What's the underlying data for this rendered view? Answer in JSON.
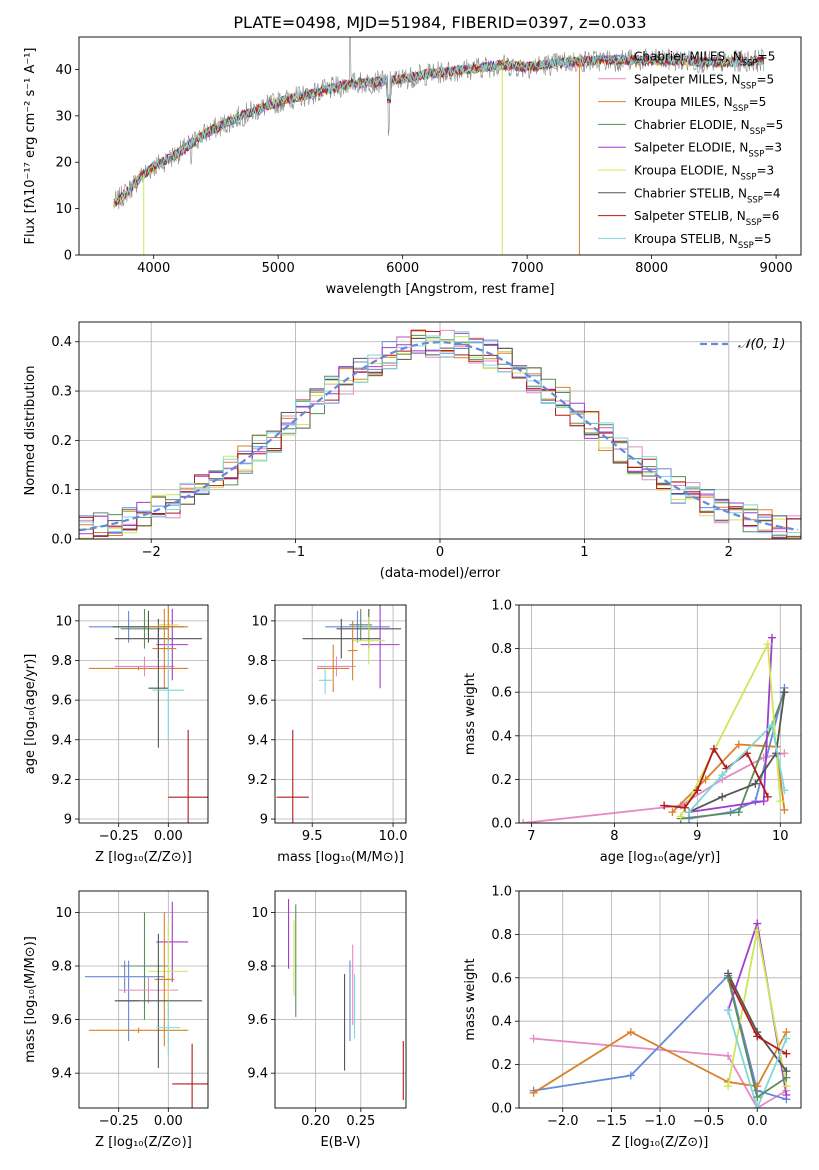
{
  "figure_title": "PLATE=0498, MJD=51984, FIBERID=0397, z=0.033",
  "chart_data": [
    {
      "id": "spectrum",
      "type": "line",
      "title": "PLATE=0498, MJD=51984, FIBERID=0397, z=0.033",
      "xlabel": "wavelength [Angstrom, rest frame]",
      "ylabel": "Flux [fλ10⁻¹⁷ erg cm⁻² s⁻¹ A⁻¹]",
      "xlim": [
        3400,
        9200
      ],
      "ylim": [
        0,
        47
      ],
      "xticks": [
        4000,
        5000,
        6000,
        7000,
        8000,
        9000
      ],
      "yticks": [
        0,
        10,
        20,
        30,
        40
      ],
      "grid": false,
      "legend_position": "upper-right",
      "legend": [
        {
          "label": "Chabrier MILES, N",
          "sub": "SSP",
          "tail": "=5",
          "color": "#6688dd"
        },
        {
          "label": "Salpeter MILES, N",
          "sub": "SSP",
          "tail": "=5",
          "color": "#e68ac2"
        },
        {
          "label": "Kroupa MILES, N",
          "sub": "SSP",
          "tail": "=5",
          "color": "#d9822b"
        },
        {
          "label": "Chabrier ELODIE, N",
          "sub": "SSP",
          "tail": "=5",
          "color": "#5c8c5c"
        },
        {
          "label": "Salpeter ELODIE, N",
          "sub": "SSP",
          "tail": "=3",
          "color": "#a23bd0"
        },
        {
          "label": "Kroupa ELODIE, N",
          "sub": "SSP",
          "tail": "=3",
          "color": "#cfe65a"
        },
        {
          "label": "Chabrier STELIB, N",
          "sub": "SSP",
          "tail": "=4",
          "color": "#555555"
        },
        {
          "label": "Salpeter STELIB, N",
          "sub": "SSP",
          "tail": "=6",
          "color": "#b31b1b"
        },
        {
          "label": "Kroupa STELIB, N",
          "sub": "SSP",
          "tail": "=5",
          "color": "#7fd6dc"
        }
      ],
      "data_spectrum_anchors": [
        [
          3680,
          11
        ],
        [
          3800,
          14
        ],
        [
          3900,
          17
        ],
        [
          4000,
          19
        ],
        [
          4200,
          22
        ],
        [
          4400,
          26
        ],
        [
          4700,
          30
        ],
        [
          5000,
          33
        ],
        [
          5300,
          35
        ],
        [
          5600,
          37
        ],
        [
          5900,
          37.5
        ],
        [
          6200,
          39
        ],
        [
          6500,
          40
        ],
        [
          6800,
          41
        ],
        [
          7000,
          40.5
        ],
        [
          7300,
          41.5
        ],
        [
          7600,
          42
        ],
        [
          7900,
          42
        ],
        [
          8200,
          42
        ],
        [
          8500,
          41.5
        ],
        [
          8900,
          42
        ]
      ],
      "features": [
        {
          "x": 5890,
          "depth": 10,
          "note": "dip"
        },
        {
          "x": 6800,
          "drop_to": 0,
          "color": "#cfe65a"
        },
        {
          "x": 7420,
          "drop_to": 0,
          "color": "#d9822b"
        },
        {
          "x": 3920,
          "drop_to": 0,
          "color": "#cfe65a"
        },
        {
          "x": 5577,
          "spike": 47
        }
      ]
    },
    {
      "id": "residuals",
      "type": "histogram",
      "xlabel": "(data-model)/error",
      "ylabel": "Normed distribution",
      "xlim": [
        -2.5,
        2.5
      ],
      "ylim": [
        0,
        0.44
      ],
      "xticks": [
        -2,
        -1,
        0,
        1,
        2
      ],
      "yticks": [
        0,
        0.1,
        0.2,
        0.3,
        0.4
      ],
      "grid": true,
      "legend": {
        "label": "𝒩(0, 1)",
        "color": "#6688dd"
      },
      "bin_width": 0.1,
      "series_colors": [
        "#6688dd",
        "#e68ac2",
        "#d9822b",
        "#5c8c5c",
        "#a23bd0",
        "#cfe65a",
        "#555555",
        "#b31b1b",
        "#7fd6dc"
      ]
    },
    {
      "id": "Z-vs-age",
      "type": "errorbar",
      "xlabel": "Z [log₁₀(Z/Z⊙)]",
      "ylabel": "age  [log₁₀(age/yr)]",
      "xlim": [
        -0.45,
        0.2
      ],
      "ylim": [
        8.98,
        10.08
      ],
      "xticks": [
        -0.25,
        0.0
      ],
      "xticklabels": [
        "−0.25",
        "0.00"
      ],
      "yticks": [
        9.0,
        9.2,
        9.4,
        9.6,
        9.8,
        10.0
      ],
      "grid": true,
      "points": [
        {
          "x": -0.2,
          "xerr": 0.2,
          "y": 9.97,
          "yerr": 0.08,
          "color": "#6688dd"
        },
        {
          "x": -0.12,
          "xerr": 0.12,
          "y": 9.96,
          "yerr": 0.1,
          "color": "#5c8c5c"
        },
        {
          "x": -0.1,
          "xerr": 0.18,
          "y": 9.97,
          "yerr": 0.08,
          "color": "#555555"
        },
        {
          "x": -0.12,
          "xerr": 0.15,
          "y": 9.77,
          "yerr": 0.05,
          "color": "#e68ac2"
        },
        {
          "x": -0.15,
          "xerr": 0.25,
          "y": 9.76,
          "yerr": 0.01,
          "color": "#d9822b"
        },
        {
          "x": -0.05,
          "xerr": 0.22,
          "y": 9.91,
          "yerr": 0.1,
          "color": "#555555"
        },
        {
          "x": 0.02,
          "xerr": 0.08,
          "y": 9.88,
          "yerr": 0.18,
          "color": "#a23bd0"
        },
        {
          "x": 0.0,
          "xerr": 0.05,
          "y": 9.98,
          "yerr": 0.08,
          "color": "#cfe65a"
        },
        {
          "x": 0.0,
          "xerr": 0.1,
          "y": 9.97,
          "yerr": 0.12,
          "color": "#d9822b"
        },
        {
          "x": -0.02,
          "xerr": 0.06,
          "y": 9.86,
          "yerr": 0.2,
          "color": "#d9822b"
        },
        {
          "x": -0.05,
          "xerr": 0.05,
          "y": 9.66,
          "yerr": 0.3,
          "color": "#555555"
        },
        {
          "x": 0.0,
          "xerr": 0.08,
          "y": 9.65,
          "yerr": 0.25,
          "color": "#7fd6dc"
        },
        {
          "x": 0.1,
          "xerr": 0.1,
          "y": 9.11,
          "yerr": 0.34,
          "color": "#b31b1b"
        }
      ]
    },
    {
      "id": "mass-vs-age",
      "type": "errorbar",
      "xlabel": "mass [log₁₀(M/M⊙)]",
      "ylabel": "",
      "xlim": [
        9.27,
        10.08
      ],
      "ylim": [
        8.98,
        10.08
      ],
      "xticks": [
        9.5,
        10.0
      ],
      "xticklabels": [
        "9.5",
        "10.0"
      ],
      "yticks": [
        9.0,
        9.2,
        9.4,
        9.6,
        9.8,
        10.0
      ],
      "grid": true,
      "points": [
        {
          "x": 9.78,
          "xerr": 0.2,
          "y": 9.97,
          "yerr": 0.08,
          "color": "#6688dd"
        },
        {
          "x": 9.85,
          "xerr": 0.2,
          "y": 9.96,
          "yerr": 0.1,
          "color": "#555555"
        },
        {
          "x": 9.8,
          "xerr": 0.07,
          "y": 9.98,
          "yerr": 0.08,
          "color": "#5c8c5c"
        },
        {
          "x": 9.92,
          "xerr": 0.12,
          "y": 9.88,
          "yerr": 0.22,
          "color": "#a23bd0"
        },
        {
          "x": 9.85,
          "xerr": 0.1,
          "y": 9.9,
          "yerr": 0.12,
          "color": "#cfe65a"
        },
        {
          "x": 9.68,
          "xerr": 0.24,
          "y": 9.91,
          "yerr": 0.1,
          "color": "#555555"
        },
        {
          "x": 9.65,
          "xerr": 0.12,
          "y": 9.77,
          "yerr": 0.05,
          "color": "#e68ac2"
        },
        {
          "x": 9.63,
          "xerr": 0.1,
          "y": 9.76,
          "yerr": 0.12,
          "color": "#d9822b"
        },
        {
          "x": 9.75,
          "xerr": 0.03,
          "y": 9.85,
          "yerr": 0.15,
          "color": "#d9822b"
        },
        {
          "x": 9.58,
          "xerr": 0.04,
          "y": 9.7,
          "yerr": 0.07,
          "color": "#7fd6dc"
        },
        {
          "x": 9.38,
          "xerr": 0.1,
          "y": 9.11,
          "yerr": 0.34,
          "color": "#b31b1b"
        }
      ]
    },
    {
      "id": "age-vs-weight",
      "type": "line",
      "xlabel": "age  [log₁₀(age/yr)]",
      "ylabel": "mass weight",
      "xlim": [
        6.85,
        10.25
      ],
      "ylim": [
        0,
        1
      ],
      "xticks": [
        7,
        8,
        9,
        10
      ],
      "yticks": [
        0,
        0.2,
        0.4,
        0.6,
        0.8,
        1.0
      ],
      "grid": true,
      "series": [
        {
          "name": "Salpeter MILES",
          "color": "#e68ac2",
          "x": [
            6.9,
            8.8,
            9.3,
            9.8,
            10.05
          ],
          "y": [
            0.0,
            0.08,
            0.2,
            0.3,
            0.32
          ]
        },
        {
          "name": "Chabrier MILES",
          "color": "#6688dd",
          "x": [
            8.9,
            9.4,
            9.7,
            10.05
          ],
          "y": [
            0.02,
            0.05,
            0.1,
            0.62
          ]
        },
        {
          "name": "Kroupa MILES",
          "color": "#d9822b",
          "x": [
            8.7,
            9.1,
            9.5,
            9.95,
            10.05
          ],
          "y": [
            0.05,
            0.2,
            0.36,
            0.35,
            0.06
          ]
        },
        {
          "name": "Chabrier ELODIE",
          "color": "#5c8c5c",
          "x": [
            8.8,
            9.5,
            10.05
          ],
          "y": [
            0.02,
            0.05,
            0.6
          ]
        },
        {
          "name": "Salpeter ELODIE",
          "color": "#a23bd0",
          "x": [
            8.9,
            9.8,
            9.9
          ],
          "y": [
            0.05,
            0.1,
            0.85
          ]
        },
        {
          "name": "Kroupa ELODIE",
          "color": "#cfe65a",
          "x": [
            8.8,
            9.85,
            10.0
          ],
          "y": [
            0.03,
            0.82,
            0.1
          ]
        },
        {
          "name": "Chabrier STELIB",
          "color": "#555555",
          "x": [
            8.9,
            9.3,
            9.7,
            9.95,
            10.05
          ],
          "y": [
            0.05,
            0.12,
            0.18,
            0.32,
            0.6
          ]
        },
        {
          "name": "Salpeter STELIB",
          "color": "#b31b1b",
          "x": [
            8.6,
            8.85,
            9.0,
            9.2,
            9.35,
            9.6,
            9.85
          ],
          "y": [
            0.08,
            0.07,
            0.15,
            0.34,
            0.25,
            0.32,
            0.12
          ]
        },
        {
          "name": "Kroupa STELIB",
          "color": "#7fd6dc",
          "x": [
            8.9,
            9.3,
            9.9,
            10.05
          ],
          "y": [
            0.05,
            0.22,
            0.45,
            0.15
          ]
        }
      ]
    },
    {
      "id": "Z-vs-mass",
      "type": "errorbar",
      "xlabel": "Z [log₁₀(Z/Z⊙)]",
      "ylabel": "mass [log₁₀(M/M⊙)]",
      "xlim": [
        -0.45,
        0.2
      ],
      "ylim": [
        9.27,
        10.08
      ],
      "xticks": [
        -0.25,
        0.0
      ],
      "xticklabels": [
        "−0.25",
        "0.00"
      ],
      "yticks": [
        9.4,
        9.6,
        9.8,
        10.0
      ],
      "grid": true,
      "points": [
        {
          "x": -0.22,
          "xerr": 0.2,
          "y": 9.76,
          "yerr": 0.06,
          "color": "#6688dd"
        },
        {
          "x": -0.2,
          "xerr": 0.05,
          "y": 9.67,
          "yerr": 0.15,
          "color": "#6688dd"
        },
        {
          "x": -0.12,
          "xerr": 0.12,
          "y": 9.8,
          "yerr": 0.2,
          "color": "#5c8c5c"
        },
        {
          "x": -0.1,
          "xerr": 0.15,
          "y": 9.71,
          "yerr": 0.05,
          "color": "#e68ac2"
        },
        {
          "x": -0.15,
          "xerr": 0.25,
          "y": 9.56,
          "yerr": 0.01,
          "color": "#d9822b"
        },
        {
          "x": 0.02,
          "xerr": 0.08,
          "y": 9.89,
          "yerr": 0.15,
          "color": "#a23bd0"
        },
        {
          "x": 0.0,
          "xerr": 0.1,
          "y": 9.78,
          "yerr": 0.18,
          "color": "#cfe65a"
        },
        {
          "x": -0.02,
          "xerr": 0.05,
          "y": 9.75,
          "yerr": 0.25,
          "color": "#d9822b"
        },
        {
          "x": -0.05,
          "xerr": 0.22,
          "y": 9.67,
          "yerr": 0.25,
          "color": "#555555"
        },
        {
          "x": 0.0,
          "xerr": 0.06,
          "y": 9.57,
          "yerr": 0.1,
          "color": "#7fd6dc"
        },
        {
          "x": 0.12,
          "xerr": 0.1,
          "y": 9.36,
          "yerr": 0.15,
          "color": "#b31b1b"
        }
      ]
    },
    {
      "id": "ebv-vs-mass",
      "type": "errorbar",
      "xlabel": "E(B-V)",
      "ylabel": "",
      "xlim": [
        0.155,
        0.3
      ],
      "ylim": [
        9.27,
        10.08
      ],
      "xticks": [
        0.2,
        0.25
      ],
      "xticklabels": [
        "0.20",
        "0.25"
      ],
      "yticks": [
        9.4,
        9.6,
        9.8,
        10.0
      ],
      "grid": true,
      "points": [
        {
          "x": 0.17,
          "xerr": 0.0,
          "y": 9.92,
          "yerr": 0.13,
          "color": "#a23bd0"
        },
        {
          "x": 0.176,
          "xerr": 0.0,
          "y": 9.83,
          "yerr": 0.14,
          "color": "#cfe65a"
        },
        {
          "x": 0.178,
          "xerr": 0.0,
          "y": 9.82,
          "yerr": 0.21,
          "color": "#5c8c5c"
        },
        {
          "x": 0.232,
          "xerr": 0.0,
          "y": 9.59,
          "yerr": 0.18,
          "color": "#555555"
        },
        {
          "x": 0.238,
          "xerr": 0.0,
          "y": 9.67,
          "yerr": 0.15,
          "color": "#6688dd"
        },
        {
          "x": 0.241,
          "xerr": 0.0,
          "y": 9.73,
          "yerr": 0.15,
          "color": "#e68ac2"
        },
        {
          "x": 0.243,
          "xerr": 0.0,
          "y": 9.65,
          "yerr": 0.12,
          "color": "#7fd6dc"
        },
        {
          "x": 0.297,
          "xerr": 0.0,
          "y": 9.41,
          "yerr": 0.11,
          "color": "#b31b1b"
        }
      ]
    },
    {
      "id": "Z-vs-weight",
      "type": "line",
      "xlabel": "Z [log₁₀(Z/Z⊙)]",
      "ylabel": "mass weight",
      "xlim": [
        -2.45,
        0.45
      ],
      "ylim": [
        0,
        1
      ],
      "xticks": [
        -2.0,
        -1.5,
        -1.0,
        -0.5,
        0.0
      ],
      "xticklabels": [
        "−2.0",
        "−1.5",
        "−1.0",
        "−0.5",
        "0.0"
      ],
      "yticks": [
        0,
        0.2,
        0.4,
        0.6,
        0.8,
        1.0
      ],
      "grid": true,
      "series": [
        {
          "name": "Salpeter MILES",
          "color": "#e68ac2",
          "x": [
            -2.3,
            -0.3,
            0.0,
            0.3
          ],
          "y": [
            0.32,
            0.24,
            0.0,
            0.08
          ]
        },
        {
          "name": "Chabrier MILES",
          "color": "#6688dd",
          "x": [
            -2.3,
            -1.3,
            -0.3,
            0.0,
            0.3
          ],
          "y": [
            0.08,
            0.15,
            0.61,
            0.08,
            0.04
          ]
        },
        {
          "name": "Kroupa MILES",
          "color": "#d9822b",
          "x": [
            -2.3,
            -1.3,
            -0.3,
            0.0,
            0.3
          ],
          "y": [
            0.07,
            0.35,
            0.12,
            0.1,
            0.35
          ]
        },
        {
          "name": "Salpeter ELODIE",
          "color": "#a23bd0",
          "x": [
            -0.3,
            0.0,
            0.3
          ],
          "y": [
            0.45,
            0.85,
            0.06
          ]
        },
        {
          "name": "Kroupa ELODIE",
          "color": "#cfe65a",
          "x": [
            -0.3,
            0.0,
            0.3
          ],
          "y": [
            0.1,
            0.82,
            0.1
          ]
        },
        {
          "name": "Chabrier STELIB",
          "color": "#555555",
          "x": [
            -0.3,
            0.0,
            0.3
          ],
          "y": [
            0.62,
            0.35,
            0.17
          ]
        },
        {
          "name": "Salpeter STELIB",
          "color": "#b31b1b",
          "x": [
            -0.3,
            0.0,
            0.3
          ],
          "y": [
            0.6,
            0.33,
            0.25
          ]
        },
        {
          "name": "Kroupa STELIB",
          "color": "#7fd6dc",
          "x": [
            -0.3,
            0.0,
            0.3
          ],
          "y": [
            0.45,
            0.0,
            0.32
          ]
        },
        {
          "name": "Chabrier ELODIE",
          "color": "#5c8c5c",
          "x": [
            -0.3,
            0.0,
            0.3
          ],
          "y": [
            0.6,
            0.05,
            0.14
          ]
        }
      ]
    }
  ]
}
